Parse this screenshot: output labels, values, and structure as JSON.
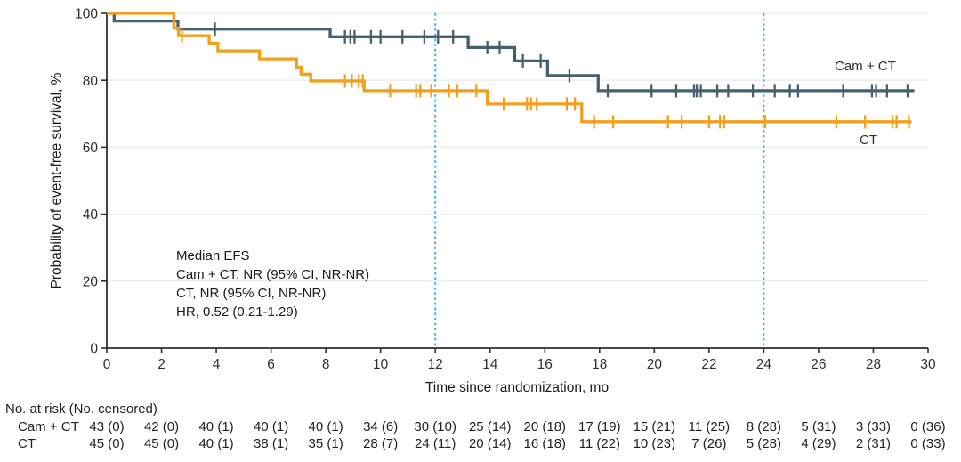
{
  "chart_data": {
    "type": "line",
    "subtype": "kaplan-meier-step",
    "title": "",
    "xlabel": "Time since randomization, mo",
    "ylabel": "Probability of event-free survival, %",
    "xlim": [
      0,
      30
    ],
    "ylim": [
      0,
      100
    ],
    "xticks": [
      0,
      2,
      4,
      6,
      8,
      10,
      12,
      14,
      16,
      18,
      20,
      22,
      24,
      26,
      28,
      30
    ],
    "yticks": [
      0,
      20,
      40,
      60,
      80,
      100
    ],
    "grid": "horizontal-light",
    "gridline_color": "#ececec",
    "axis_color": "#2f2f2f",
    "reference_lines_x": [
      12,
      24
    ],
    "reference_line_color": "#35b4e6",
    "legend_position": "labels-at-line-end",
    "annotation": [
      "Median EFS",
      "Cam + CT, NR (95% CI, NR-NR)",
      "CT, NR (95% CI, NR-NR)",
      "HR, 0.52 (0.21-1.29)"
    ],
    "series": [
      {
        "name": "Cam + CT",
        "color": "#45606e",
        "steps": [
          [
            0,
            100
          ],
          [
            0.27,
            97.7
          ],
          [
            2.6,
            95.3
          ],
          [
            8.16,
            93
          ],
          [
            13.2,
            89.8
          ],
          [
            14.9,
            85.8
          ],
          [
            16.1,
            81.4
          ],
          [
            17.95,
            76.9
          ],
          [
            29.5,
            76.9
          ]
        ],
        "censors": [
          [
            3.95,
            95.3
          ],
          [
            8.7,
            93
          ],
          [
            8.9,
            93
          ],
          [
            9.05,
            93
          ],
          [
            9.65,
            93
          ],
          [
            10.0,
            93
          ],
          [
            10.8,
            93
          ],
          [
            11.6,
            93
          ],
          [
            12.1,
            93
          ],
          [
            12.65,
            93
          ],
          [
            13.9,
            89.8
          ],
          [
            14.35,
            89.8
          ],
          [
            15.2,
            85.8
          ],
          [
            15.85,
            85.8
          ],
          [
            16.9,
            81.4
          ],
          [
            18.3,
            76.9
          ],
          [
            19.9,
            76.9
          ],
          [
            20.8,
            76.9
          ],
          [
            21.45,
            76.9
          ],
          [
            21.55,
            76.9
          ],
          [
            21.7,
            76.9
          ],
          [
            22.3,
            76.9
          ],
          [
            22.7,
            76.9
          ],
          [
            23.6,
            76.9
          ],
          [
            24.4,
            76.9
          ],
          [
            24.95,
            76.9
          ],
          [
            25.25,
            76.9
          ],
          [
            26.9,
            76.9
          ],
          [
            27.95,
            76.9
          ],
          [
            28.1,
            76.9
          ],
          [
            28.5,
            76.9
          ],
          [
            29.25,
            76.9
          ]
        ]
      },
      {
        "name": "CT",
        "color": "#f0a01e",
        "steps": [
          [
            0,
            100
          ],
          [
            2.45,
            95.6
          ],
          [
            2.62,
            93.3
          ],
          [
            3.74,
            91.1
          ],
          [
            4.06,
            88.8
          ],
          [
            5.58,
            86.4
          ],
          [
            6.93,
            83.9
          ],
          [
            7.1,
            81.8
          ],
          [
            7.45,
            79.8
          ],
          [
            9.4,
            76.9
          ],
          [
            13.9,
            72.9
          ],
          [
            17.35,
            67.6
          ],
          [
            29.4,
            67.6
          ]
        ],
        "censors": [
          [
            2.75,
            93.3
          ],
          [
            8.7,
            79.8
          ],
          [
            8.95,
            79.8
          ],
          [
            9.2,
            79.8
          ],
          [
            9.35,
            79.8
          ],
          [
            10.35,
            76.9
          ],
          [
            11.3,
            76.9
          ],
          [
            11.45,
            76.9
          ],
          [
            11.85,
            76.9
          ],
          [
            12.5,
            76.9
          ],
          [
            12.8,
            76.9
          ],
          [
            13.5,
            76.9
          ],
          [
            14.5,
            72.9
          ],
          [
            15.35,
            72.9
          ],
          [
            15.5,
            72.9
          ],
          [
            15.7,
            72.9
          ],
          [
            16.8,
            72.9
          ],
          [
            17.1,
            72.9
          ],
          [
            17.8,
            67.6
          ],
          [
            18.5,
            67.6
          ],
          [
            20.5,
            67.6
          ],
          [
            21.0,
            67.6
          ],
          [
            22.0,
            67.6
          ],
          [
            22.4,
            67.6
          ],
          [
            22.55,
            67.6
          ],
          [
            24.05,
            67.6
          ],
          [
            26.65,
            67.6
          ],
          [
            27.7,
            67.6
          ],
          [
            28.7,
            67.6
          ],
          [
            28.85,
            67.6
          ],
          [
            29.3,
            67.6
          ]
        ]
      }
    ]
  },
  "risk_table": {
    "header": "No. at risk (No. censored)",
    "times": [
      0,
      2,
      4,
      6,
      8,
      10,
      12,
      14,
      16,
      18,
      20,
      22,
      24,
      26,
      28,
      30
    ],
    "rows": [
      {
        "label": "Cam + CT",
        "values": [
          "43 (0)",
          "42 (0)",
          "40 (1)",
          "40 (1)",
          "40 (1)",
          "34 (6)",
          "30 (10)",
          "25 (14)",
          "20 (18)",
          "17 (19)",
          "15 (21)",
          "11 (25)",
          "8 (28)",
          "5 (31)",
          "3 (33)",
          "0 (36)"
        ]
      },
      {
        "label": "CT",
        "values": [
          "45 (0)",
          "45 (0)",
          "40 (1)",
          "38 (1)",
          "35 (1)",
          "28 (7)",
          "24 (11)",
          "20 (14)",
          "16 (18)",
          "11 (22)",
          "10 (23)",
          "7 (26)",
          "5 (28)",
          "4 (29)",
          "2 (31)",
          "0 (33)"
        ]
      }
    ]
  },
  "colors": {
    "cam_ct_line": "#45606e",
    "ct_line": "#f0a01e",
    "reference_line": "#35b4e6",
    "gridline": "#ececec",
    "axis": "#2f2f2f",
    "text": "#1f1f1f"
  }
}
